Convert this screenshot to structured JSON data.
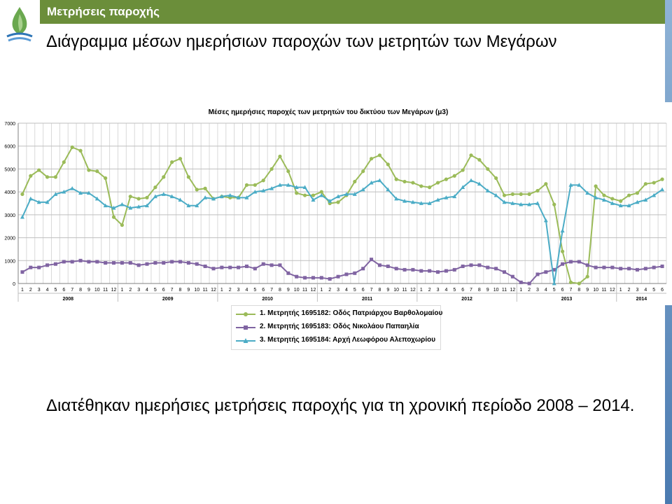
{
  "header": {
    "label": "Μετρήσεις παροχής"
  },
  "slide": {
    "title": "Διάγραμμα μέσων ημερήσιων παροχών των μετρητών των Μεγάρων",
    "bottom_text": "Διατέθηκαν ημερήσιες μετρήσεις παροχής για τη χρονική περίοδο 2008 – 2014."
  },
  "chart_data": {
    "type": "line",
    "title": "Μέσες ημερήσιες παροχές των μετρητών του δικτύου των Μεγάρων (μ3)",
    "xlabel": "",
    "ylabel": "",
    "ylim": [
      0,
      7000
    ],
    "yticks": [
      0,
      1000,
      2000,
      3000,
      4000,
      5000,
      6000,
      7000
    ],
    "grid": true,
    "legend_position": "bottom",
    "years": [
      "2008",
      "2009",
      "2010",
      "2011",
      "2012",
      "2013",
      "2014"
    ],
    "months": [
      "1",
      "2",
      "3",
      "4",
      "5",
      "6",
      "7",
      "8",
      "9",
      "10",
      "11",
      "12",
      "1",
      "2",
      "3",
      "4",
      "5",
      "6",
      "7",
      "8",
      "9",
      "10",
      "11",
      "12",
      "1",
      "2",
      "3",
      "4",
      "5",
      "6",
      "7",
      "8",
      "9",
      "10",
      "11",
      "12",
      "1",
      "2",
      "3",
      "4",
      "5",
      "6",
      "7",
      "8",
      "9",
      "10",
      "11",
      "12",
      "1",
      "2",
      "3",
      "4",
      "5",
      "6",
      "7",
      "8",
      "9",
      "10",
      "11",
      "12",
      "1",
      "2",
      "3",
      "4",
      "5",
      "6",
      "7",
      "8",
      "9",
      "10",
      "11",
      "12",
      "1",
      "2",
      "3",
      "4",
      "5",
      "6"
    ],
    "series": [
      {
        "name": "1. Μετρητής 1695182: Οδός Πατριάρχου Βαρθολομαίου",
        "color": "#9bbb59",
        "marker": "circle",
        "values": [
          3900,
          4700,
          4950,
          4650,
          4650,
          5300,
          5950,
          5800,
          4950,
          4900,
          4600,
          2900,
          2550,
          3800,
          3700,
          3750,
          4200,
          4650,
          5300,
          5450,
          4650,
          4100,
          4150,
          3700,
          3800,
          3750,
          3750,
          4300,
          4300,
          4500,
          5000,
          5550,
          4900,
          3950,
          3850,
          3850,
          4000,
          3500,
          3550,
          3850,
          4450,
          4900,
          5450,
          5600,
          5200,
          4550,
          4450,
          4400,
          4250,
          4200,
          4400,
          4550,
          4700,
          4950,
          5600,
          5400,
          5000,
          4600,
          3850,
          3900,
          3900,
          3900,
          4050,
          4350,
          3450,
          1400,
          50,
          0,
          300,
          4250,
          3850,
          3700,
          3600,
          3850,
          3950,
          4350,
          4400,
          4550
        ]
      },
      {
        "name": "2. Μετρητής 1695183: Οδός Νικολάου Παπαηλία",
        "color": "#8064a2",
        "marker": "square",
        "values": [
          500,
          700,
          700,
          800,
          850,
          950,
          950,
          1000,
          950,
          950,
          900,
          900,
          900,
          900,
          800,
          850,
          900,
          900,
          950,
          950,
          900,
          850,
          750,
          650,
          700,
          700,
          700,
          750,
          650,
          850,
          800,
          800,
          450,
          300,
          250,
          250,
          250,
          200,
          300,
          400,
          450,
          650,
          1050,
          800,
          750,
          650,
          600,
          600,
          550,
          550,
          500,
          550,
          600,
          750,
          800,
          800,
          700,
          650,
          500,
          300,
          50,
          0,
          400,
          500,
          600,
          850,
          950,
          950,
          800,
          700,
          700,
          700,
          650,
          650,
          600,
          650,
          700,
          750
        ]
      },
      {
        "name": "3. Μετρητής 1695184: Αρχή Λεωφόρου Αλεποχωρίου",
        "color": "#4bacc6",
        "marker": "triangle",
        "values": [
          2900,
          3700,
          3550,
          3550,
          3900,
          4000,
          4150,
          3950,
          3950,
          3700,
          3400,
          3300,
          3450,
          3300,
          3350,
          3400,
          3800,
          3900,
          3800,
          3650,
          3400,
          3400,
          3750,
          3700,
          3800,
          3850,
          3750,
          3750,
          4000,
          4050,
          4150,
          4300,
          4300,
          4200,
          4200,
          3650,
          3850,
          3600,
          3800,
          3900,
          3900,
          4100,
          4400,
          4500,
          4100,
          3700,
          3600,
          3550,
          3500,
          3500,
          3650,
          3750,
          3800,
          4200,
          4500,
          4350,
          4050,
          3850,
          3550,
          3500,
          3450,
          3450,
          3500,
          2750,
          0,
          2300,
          4300,
          4300,
          3950,
          3750,
          3650,
          3500,
          3400,
          3400,
          3550,
          3650,
          3850,
          4100
        ]
      }
    ]
  }
}
